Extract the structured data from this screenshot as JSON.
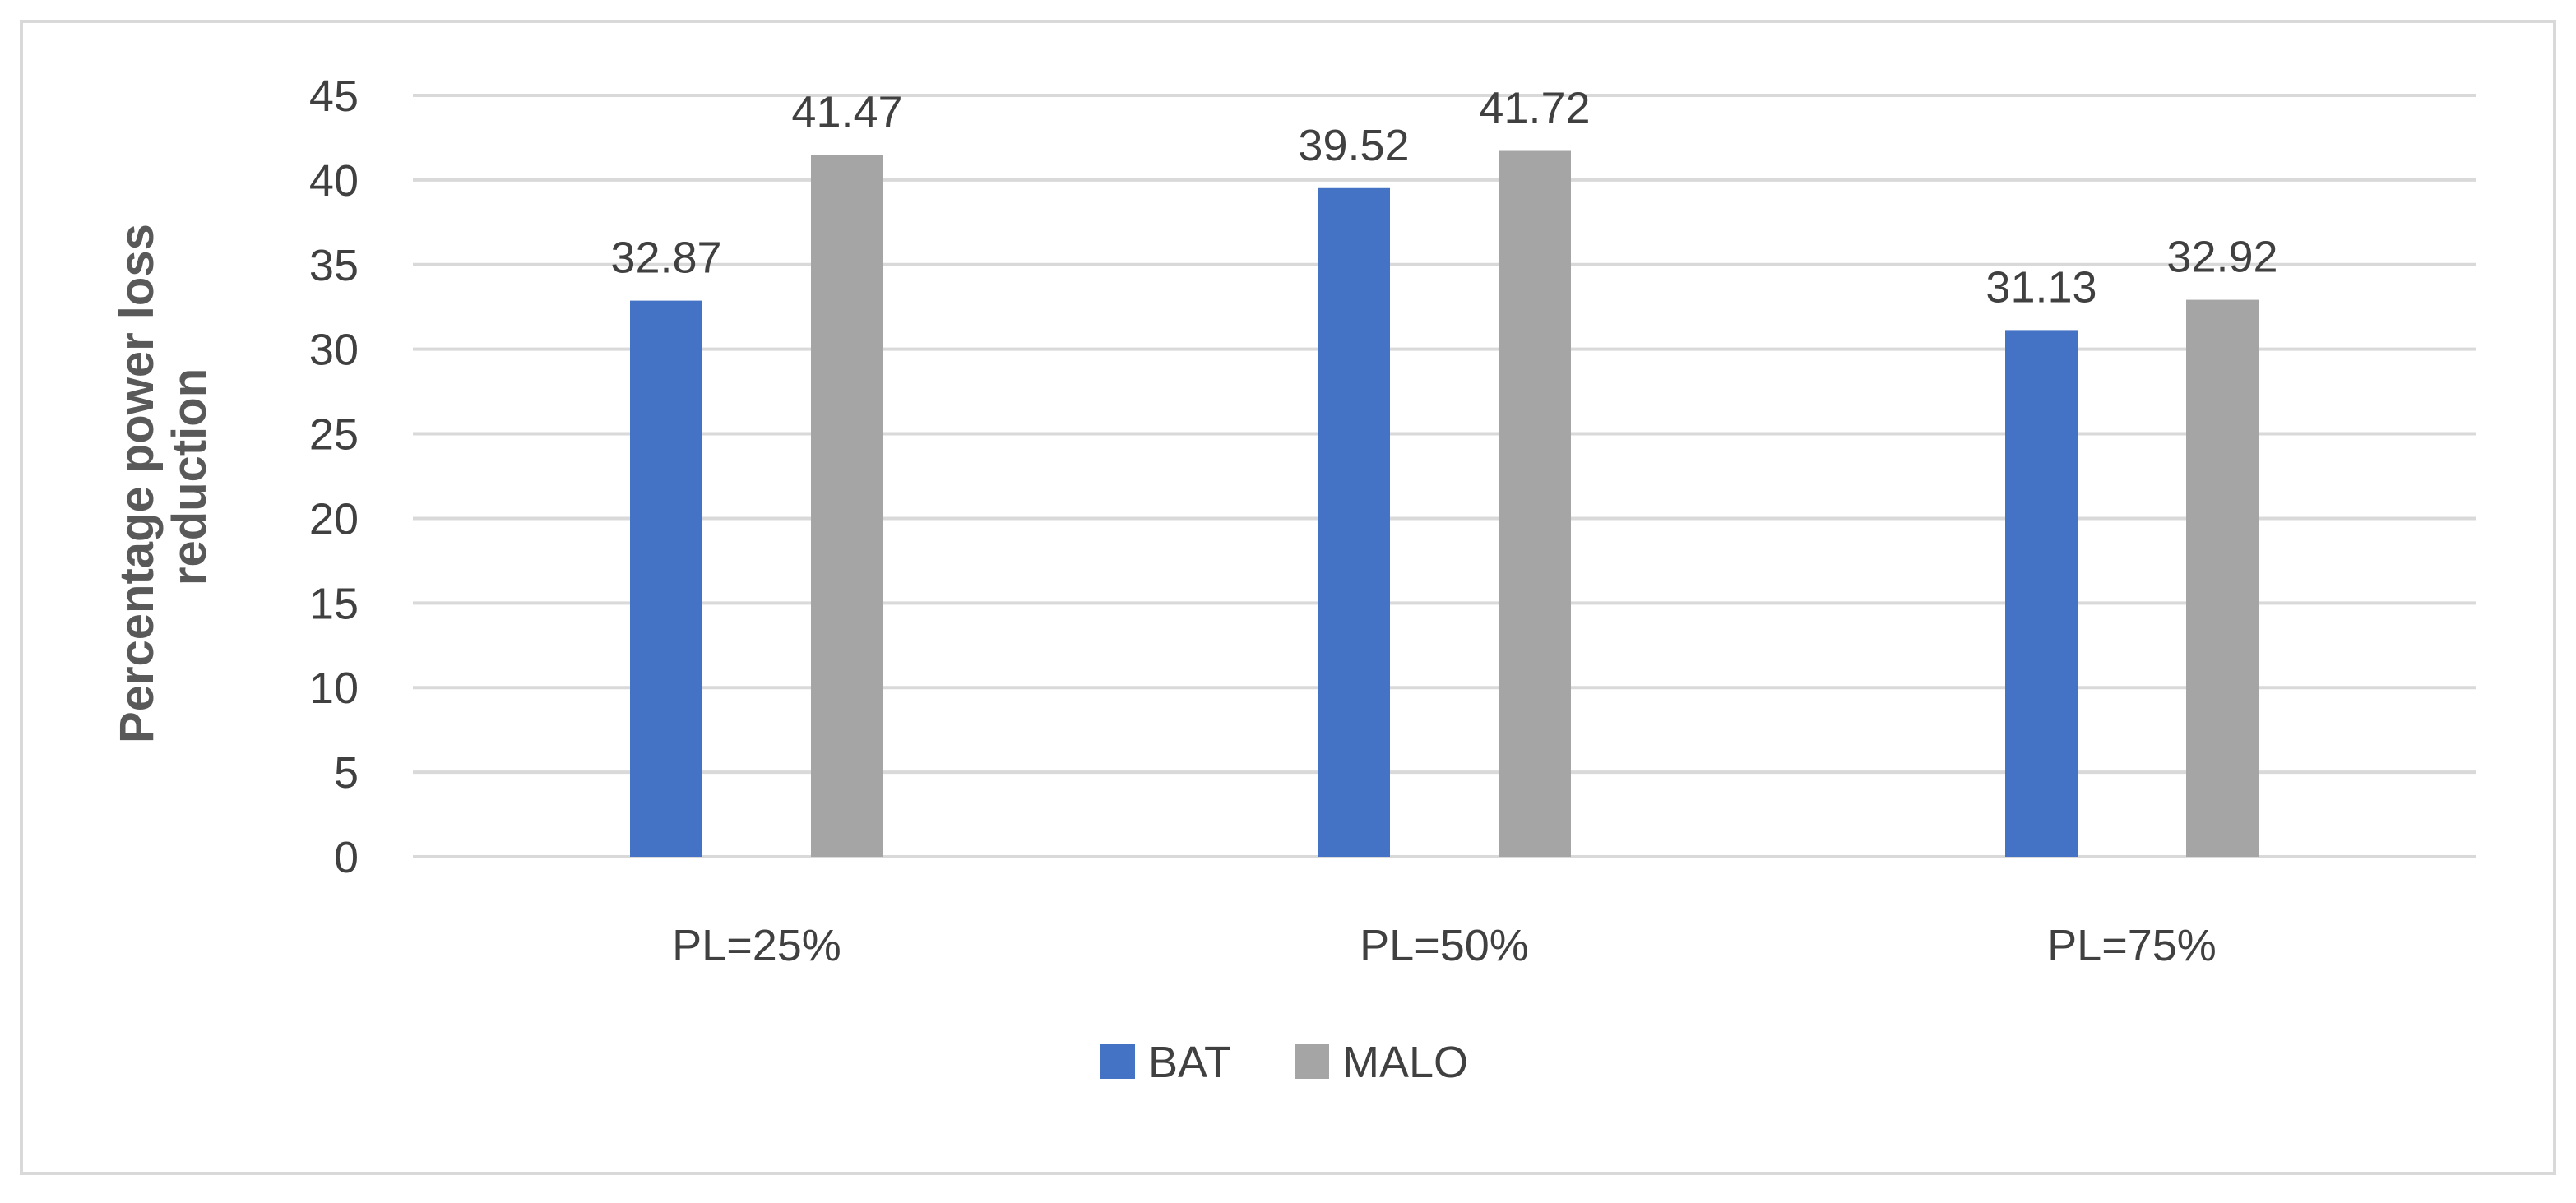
{
  "chart_data": {
    "type": "bar",
    "categories": [
      "PL=25%",
      "PL=50%",
      "PL=75%"
    ],
    "series": [
      {
        "name": "BAT",
        "values": [
          32.87,
          39.52,
          31.13
        ],
        "color": "#4472c4"
      },
      {
        "name": "MALO",
        "values": [
          41.47,
          41.72,
          32.92
        ],
        "color": "#a5a5a5"
      }
    ],
    "data_labels": [
      [
        "32.87",
        "39.52",
        "31.13"
      ],
      [
        "41.47",
        "41.72",
        "32.92"
      ]
    ],
    "title": "",
    "xlabel": "",
    "ylabel_lines": [
      "Percentage power loss",
      "reduction"
    ],
    "ylim": [
      0,
      45
    ],
    "yticks": [
      0,
      5,
      10,
      15,
      20,
      25,
      30,
      35,
      40,
      45
    ],
    "grid": true,
    "legend_position": "bottom",
    "colors": {
      "grid": "#d9d9d9",
      "text": "#404040",
      "axis_title": "#595959",
      "border": "#d9d9d9"
    }
  }
}
